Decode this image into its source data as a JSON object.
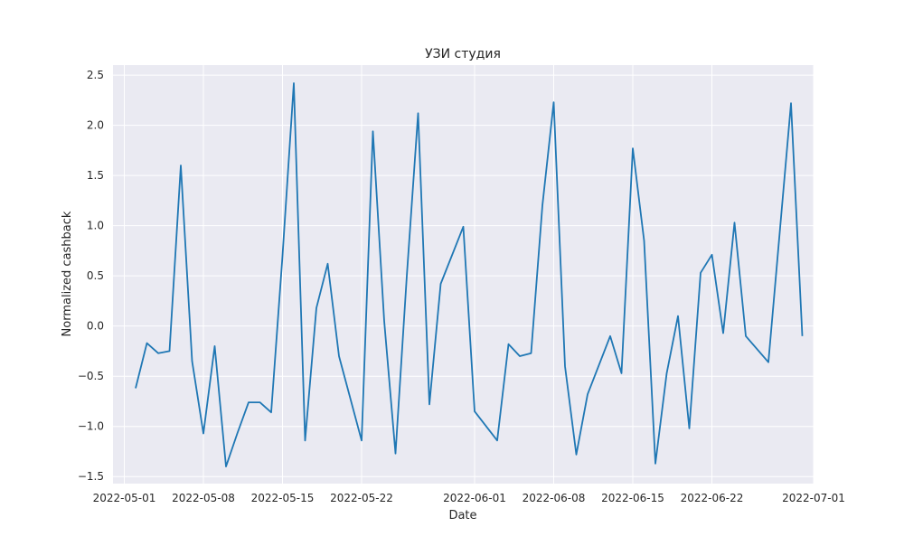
{
  "chart_data": {
    "type": "line",
    "title": "УЗИ студия",
    "xlabel": "Date",
    "ylabel": "Normalized cashback",
    "x_ticks": [
      "2022-05-01",
      "2022-05-08",
      "2022-05-15",
      "2022-05-22",
      "2022-06-01",
      "2022-06-08",
      "2022-06-15",
      "2022-06-22",
      "2022-07-01"
    ],
    "y_ticks": [
      -1.5,
      -1.0,
      -0.5,
      0.0,
      0.5,
      1.0,
      1.5,
      2.0,
      2.5
    ],
    "y_tick_labels": [
      "−1.5",
      "−1.0",
      "−0.5",
      "0.0",
      "0.5",
      "1.0",
      "1.5",
      "2.0",
      "2.5"
    ],
    "xlim": [
      "2022-04-30",
      "2022-07-01"
    ],
    "ylim": [
      -1.57,
      2.6
    ],
    "grid": true,
    "background": "#eaeaf2",
    "line_color": "#1f77b4",
    "series": [
      {
        "points": [
          [
            "2022-05-02",
            -0.62
          ],
          [
            "2022-05-03",
            -0.17
          ],
          [
            "2022-05-04",
            -0.27
          ],
          [
            "2022-05-05",
            -0.25
          ],
          [
            "2022-05-06",
            1.6
          ],
          [
            "2022-05-07",
            -0.35
          ],
          [
            "2022-05-08",
            -1.07
          ],
          [
            "2022-05-09",
            -0.2
          ],
          [
            "2022-05-10",
            -1.4
          ],
          [
            "2022-05-11",
            -1.07
          ],
          [
            "2022-05-12",
            -0.76
          ],
          [
            "2022-05-13",
            -0.76
          ],
          [
            "2022-05-14",
            -0.86
          ],
          [
            "2022-05-15",
            0.7
          ],
          [
            "2022-05-16",
            2.42
          ],
          [
            "2022-05-17",
            -1.14
          ],
          [
            "2022-05-18",
            0.18
          ],
          [
            "2022-05-19",
            0.62
          ],
          [
            "2022-05-20",
            -0.3
          ],
          [
            "2022-05-22",
            -1.14
          ],
          [
            "2022-05-23",
            1.94
          ],
          [
            "2022-05-24",
            0.05
          ],
          [
            "2022-05-25",
            -1.27
          ],
          [
            "2022-05-26",
            0.5
          ],
          [
            "2022-05-27",
            2.12
          ],
          [
            "2022-05-28",
            -0.78
          ],
          [
            "2022-05-29",
            0.42
          ],
          [
            "2022-05-31",
            0.99
          ],
          [
            "2022-06-01",
            -0.85
          ],
          [
            "2022-06-03",
            -1.14
          ],
          [
            "2022-06-04",
            -0.18
          ],
          [
            "2022-06-05",
            -0.3
          ],
          [
            "2022-06-06",
            -0.27
          ],
          [
            "2022-06-07",
            1.2
          ],
          [
            "2022-06-08",
            2.23
          ],
          [
            "2022-06-09",
            -0.4
          ],
          [
            "2022-06-10",
            -1.28
          ],
          [
            "2022-06-11",
            -0.68
          ],
          [
            "2022-06-13",
            -0.1
          ],
          [
            "2022-06-14",
            -0.47
          ],
          [
            "2022-06-15",
            1.77
          ],
          [
            "2022-06-16",
            0.85
          ],
          [
            "2022-06-17",
            -1.37
          ],
          [
            "2022-06-18",
            -0.47
          ],
          [
            "2022-06-19",
            0.1
          ],
          [
            "2022-06-20",
            -1.02
          ],
          [
            "2022-06-21",
            0.53
          ],
          [
            "2022-06-22",
            0.71
          ],
          [
            "2022-06-23",
            -0.07
          ],
          [
            "2022-06-24",
            1.03
          ],
          [
            "2022-06-25",
            -0.1
          ],
          [
            "2022-06-27",
            -0.36
          ],
          [
            "2022-06-29",
            2.22
          ],
          [
            "2022-06-30",
            -0.1
          ]
        ]
      }
    ]
  }
}
